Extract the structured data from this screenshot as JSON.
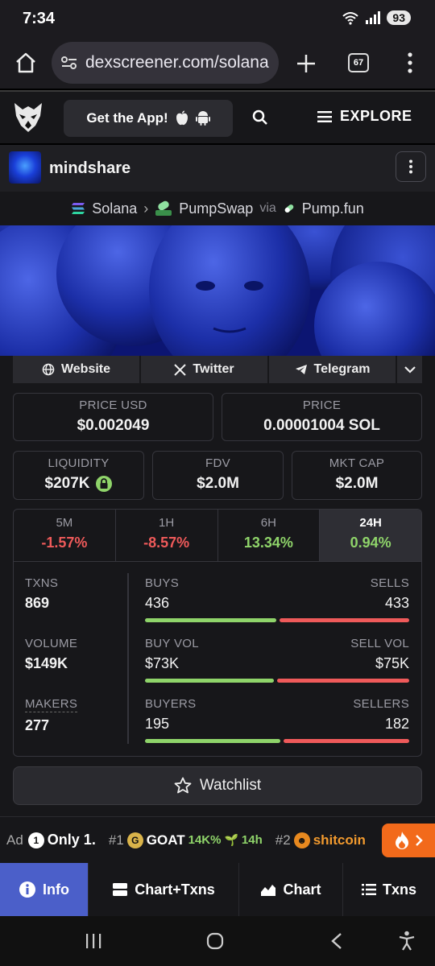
{
  "status": {
    "time": "7:34",
    "battery": "93",
    "wifi_badge": "5"
  },
  "browser": {
    "url": "dexscreener.com/solana",
    "tab_count": "67"
  },
  "header": {
    "get_app_label": "Get the App!",
    "explore_label": "EXPLORE"
  },
  "token": {
    "name": "mindshare"
  },
  "breadcrumb": {
    "chain": "Solana",
    "dex": "PumpSwap",
    "via": "via",
    "launchpad": "Pump.fun"
  },
  "links": {
    "website": "Website",
    "twitter": "Twitter",
    "telegram": "Telegram"
  },
  "price": {
    "usd_label": "PRICE USD",
    "usd_value": "$0.002049",
    "native_label": "PRICE",
    "native_value": "0.00001004 SOL"
  },
  "metrics": {
    "liquidity_label": "LIQUIDITY",
    "liquidity_value": "$207K",
    "fdv_label": "FDV",
    "fdv_value": "$2.0M",
    "mcap_label": "MKT CAP",
    "mcap_value": "$2.0M"
  },
  "changes": [
    {
      "label": "5M",
      "value": "-1.57%",
      "dir": "neg"
    },
    {
      "label": "1H",
      "value": "-8.57%",
      "dir": "neg"
    },
    {
      "label": "6H",
      "value": "13.34%",
      "dir": "pos"
    },
    {
      "label": "24H",
      "value": "0.94%",
      "dir": "pos"
    }
  ],
  "stats": {
    "txns_label": "TXNS",
    "txns_value": "869",
    "volume_label": "VOLUME",
    "volume_value": "$149K",
    "makers_label": "MAKERS",
    "makers_value": "277",
    "buys_label": "BUYS",
    "buys_value": "436",
    "sells_label": "SELLS",
    "sells_value": "433",
    "buyvol_label": "BUY VOL",
    "buyvol_value": "$73K",
    "sellvol_label": "SELL VOL",
    "sellvol_value": "$75K",
    "buyers_label": "BUYERS",
    "buyers_value": "195",
    "sellers_label": "SELLERS",
    "sellers_value": "182",
    "buys_ratio": 0.502,
    "buyvol_ratio": 0.493,
    "buyers_ratio": 0.517
  },
  "watchlist_label": "Watchlist",
  "ad": {
    "ad_label": "Ad",
    "sponsor": "Only 1.",
    "trend1_rank": "#1",
    "trend1_name": "GOAT",
    "trend1_pct": "14K%",
    "trend1_age": "14h",
    "trend2_rank": "#2",
    "trend2_name": "shitcoin"
  },
  "tabs": {
    "info": "Info",
    "chart_txns": "Chart+Txns",
    "chart": "Chart",
    "txns": "Txns"
  },
  "colors": {
    "accent": "#4b5fc9",
    "positive": "#8fd46a",
    "negative": "#ef5a5a",
    "trend": "#f26a1b"
  }
}
